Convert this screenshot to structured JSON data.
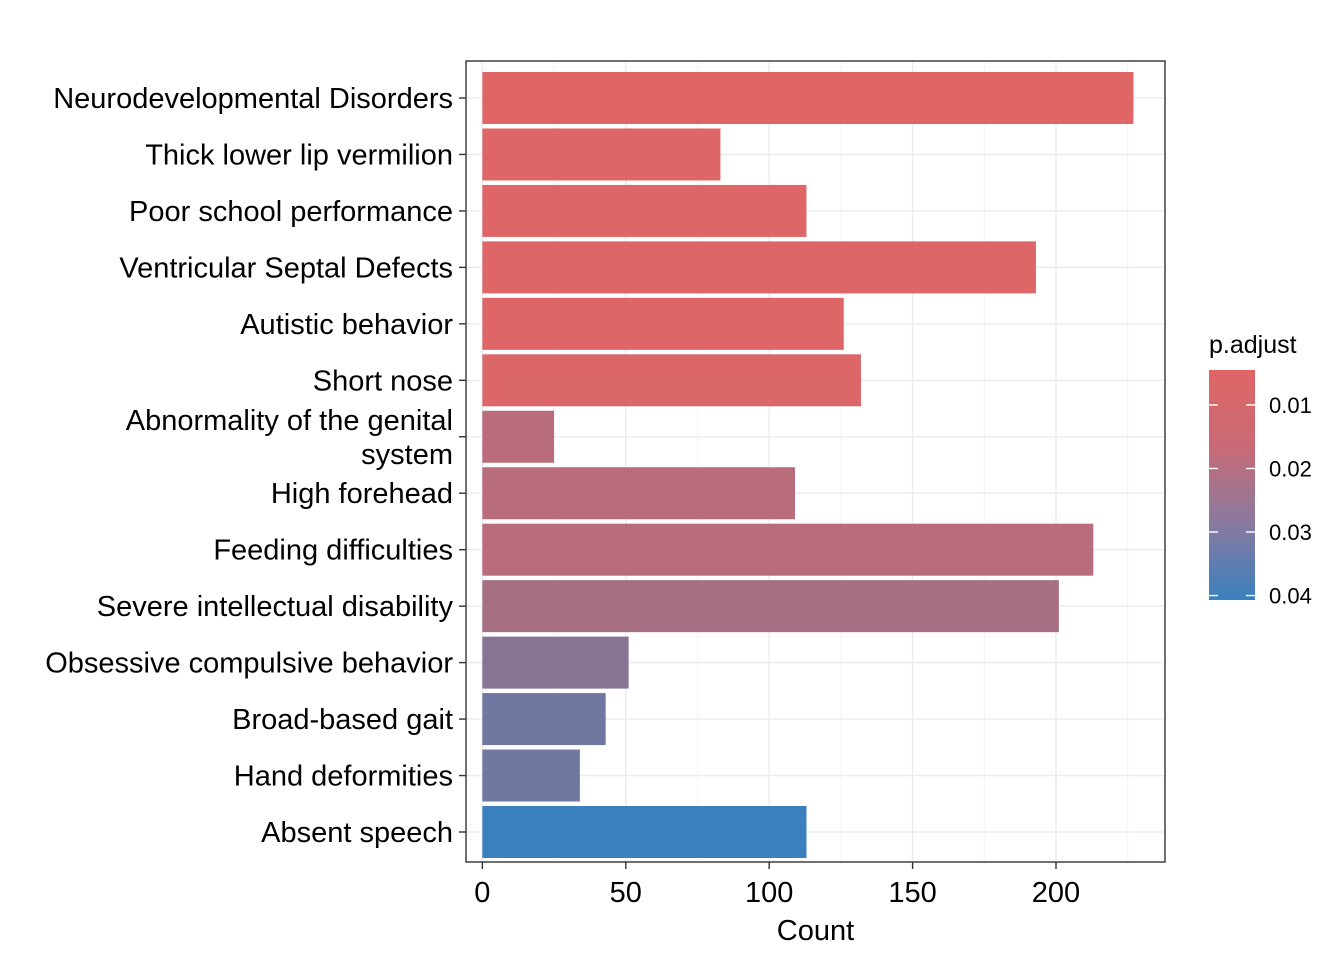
{
  "chart_data": {
    "type": "bar",
    "orientation": "horizontal",
    "xlabel": "Count",
    "ylabel": "",
    "title": "",
    "xlim": [
      -5.7,
      238
    ],
    "x_ticks": [
      0,
      50,
      100,
      150,
      200
    ],
    "grid": true,
    "legend": {
      "title": "p.adjust",
      "placement": "right",
      "ticks": [
        0.01,
        0.02,
        0.03,
        0.04
      ],
      "range": [
        0.0045,
        0.0407
      ],
      "color_low": "#E06666",
      "color_high": "#3A80BE"
    },
    "categories": [
      {
        "label": "Neurodevelopmental Disorders",
        "lines": [
          "Neurodevelopmental Disorders"
        ],
        "count": 227,
        "p_adjust": 0.0045
      },
      {
        "label": "Thick lower lip vermilion",
        "lines": [
          "Thick lower lip vermilion"
        ],
        "count": 83,
        "p_adjust": 0.005
      },
      {
        "label": "Poor school performance",
        "lines": [
          "Poor school performance"
        ],
        "count": 113,
        "p_adjust": 0.005
      },
      {
        "label": "Ventricular Septal Defects",
        "lines": [
          "Ventricular Septal Defects"
        ],
        "count": 193,
        "p_adjust": 0.005
      },
      {
        "label": "Autistic behavior",
        "lines": [
          "Autistic behavior"
        ],
        "count": 126,
        "p_adjust": 0.005
      },
      {
        "label": "Short nose",
        "lines": [
          "Short nose"
        ],
        "count": 132,
        "p_adjust": 0.0055
      },
      {
        "label": "Abnormality of the genital system",
        "lines": [
          "Abnormality of the genital",
          "system"
        ],
        "count": 25,
        "p_adjust": 0.013
      },
      {
        "label": "High forehead",
        "lines": [
          "High forehead"
        ],
        "count": 109,
        "p_adjust": 0.013
      },
      {
        "label": "Feeding difficulties",
        "lines": [
          "Feeding difficulties"
        ],
        "count": 213,
        "p_adjust": 0.013
      },
      {
        "label": "Severe intellectual disability",
        "lines": [
          "Severe intellectual disability"
        ],
        "count": 201,
        "p_adjust": 0.017
      },
      {
        "label": "Obsessive compulsive behavior",
        "lines": [
          "Obsessive compulsive behavior"
        ],
        "count": 51,
        "p_adjust": 0.024
      },
      {
        "label": "Broad-based gait",
        "lines": [
          "Broad-based gait"
        ],
        "count": 43,
        "p_adjust": 0.029
      },
      {
        "label": "Hand deformities",
        "lines": [
          "Hand deformities"
        ],
        "count": 34,
        "p_adjust": 0.029
      },
      {
        "label": "Absent speech",
        "lines": [
          "Absent speech"
        ],
        "count": 113,
        "p_adjust": 0.0407
      }
    ]
  }
}
